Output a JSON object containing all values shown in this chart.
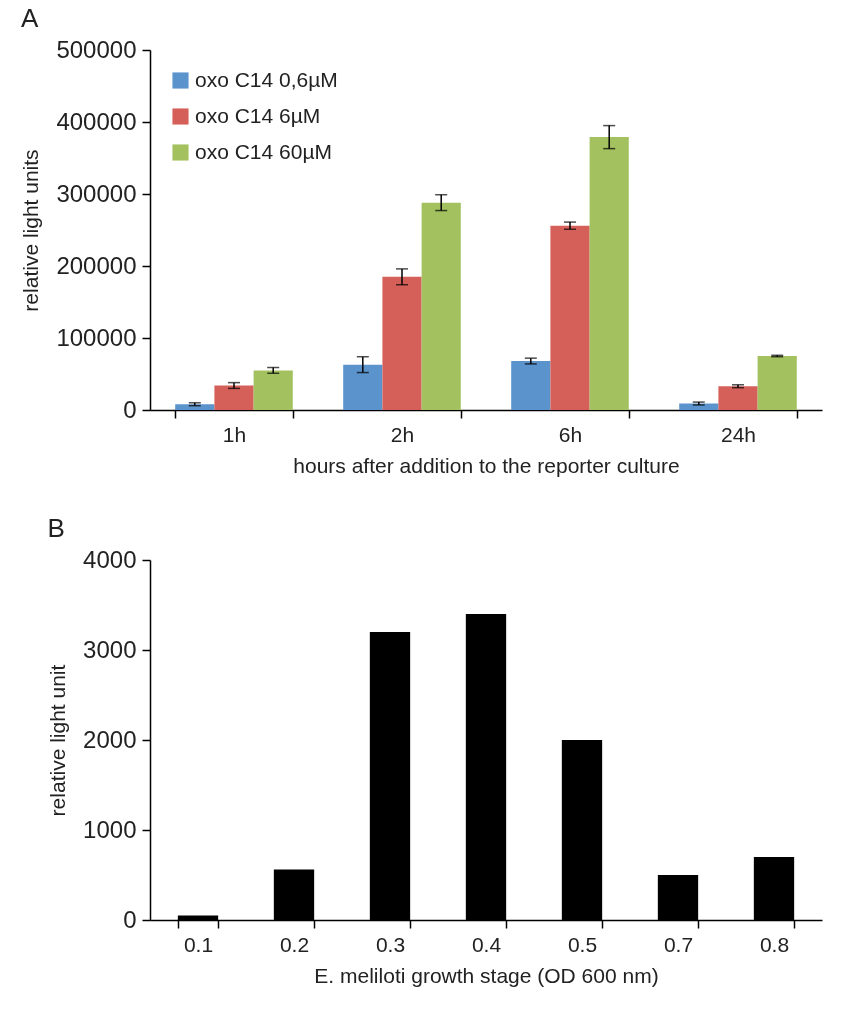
{
  "chart_data": [
    {
      "type": "bar",
      "annotations": [
        "A"
      ],
      "ylabel": "relative light units",
      "xlabel": "hours after addition to the reporter culture",
      "categories": [
        "1h",
        "2h",
        "6h",
        "24h"
      ],
      "series": [
        {
          "name": "oxo C14  0,6µM",
          "color": "#5b93cc",
          "values": [
            8000,
            63000,
            68000,
            9000
          ],
          "errors": [
            2000,
            11000,
            4000,
            2000
          ]
        },
        {
          "name": "oxo C14  6µM",
          "color": "#d5605a",
          "values": [
            34000,
            185000,
            256000,
            33000
          ],
          "errors": [
            4000,
            11000,
            5000,
            2000
          ]
        },
        {
          "name": "oxo C14 60µM",
          "color": "#a3c25f",
          "values": [
            55000,
            288000,
            379000,
            75000
          ],
          "errors": [
            4000,
            11000,
            16000,
            1000
          ]
        }
      ],
      "ylim": [
        0,
        500000
      ],
      "yticks": [
        0,
        100000,
        200000,
        300000,
        400000,
        500000
      ],
      "legend": "top left"
    },
    {
      "type": "bar",
      "annotations": [
        "B"
      ],
      "ylabel": "relative light unit",
      "xlabel": "E. meliloti growth stage (OD 600 nm)",
      "categories": [
        "0.1",
        "0.2",
        "0.3",
        "0.4",
        "0.5",
        "0.7",
        "0.8"
      ],
      "series": [
        {
          "color": "#000000",
          "values": [
            50,
            560,
            3200,
            3400,
            2000,
            500,
            700
          ]
        }
      ],
      "ylim": [
        0,
        4000
      ],
      "yticks": [
        0,
        1000,
        2000,
        3000,
        4000
      ]
    }
  ]
}
